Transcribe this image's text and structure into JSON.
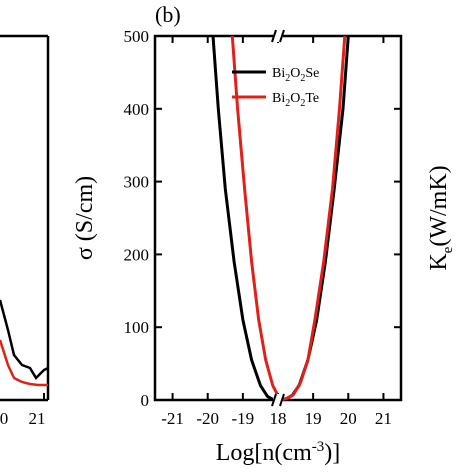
{
  "colors": {
    "se": "#000000",
    "te": "#e0201b",
    "axis": "#000000"
  },
  "left_panel_ticks": [
    "0",
    "21"
  ],
  "chart_data": {
    "type": "line",
    "panel_label": "(b)",
    "xlabel": "Log[n(cm⁻³)]",
    "ylabel": "σ (S/cm)",
    "y2label": "Ke(W/mK)",
    "xlim": [
      -21.5,
      21.5
    ],
    "ylim": [
      0,
      500
    ],
    "x_axis_break": true,
    "x_ticks": [
      {
        "v": -21,
        "label": "-21"
      },
      {
        "v": -20,
        "label": "-20"
      },
      {
        "v": -19,
        "label": "-19"
      },
      {
        "v": 18,
        "label": "18"
      },
      {
        "v": 19,
        "label": "19"
      },
      {
        "v": 20,
        "label": "20"
      },
      {
        "v": 21,
        "label": "21"
      }
    ],
    "y_ticks": [
      0,
      100,
      200,
      300,
      400,
      500
    ],
    "legend": {
      "position": "top-right"
    },
    "series": [
      {
        "name": "Bi2O2Se",
        "color": "#000000",
        "points": [
          [
            -19.85,
            500
          ],
          [
            -19.7,
            400
          ],
          [
            -19.5,
            290
          ],
          [
            -19.25,
            190
          ],
          [
            -19.0,
            110
          ],
          [
            -18.75,
            55
          ],
          [
            -18.5,
            20
          ],
          [
            -18.3,
            5
          ],
          [
            -18.15,
            1
          ],
          [
            18.05,
            0.2
          ],
          [
            18.2,
            1
          ],
          [
            18.4,
            6
          ],
          [
            18.6,
            20
          ],
          [
            18.85,
            55
          ],
          [
            19.1,
            110
          ],
          [
            19.35,
            190
          ],
          [
            19.6,
            290
          ],
          [
            19.85,
            400
          ],
          [
            20.0,
            500
          ]
        ]
      },
      {
        "name": "Bi2O2Te",
        "color": "#e0201b",
        "points": [
          [
            -19.3,
            500
          ],
          [
            -19.15,
            400
          ],
          [
            -18.95,
            290
          ],
          [
            -18.75,
            190
          ],
          [
            -18.55,
            110
          ],
          [
            -18.35,
            55
          ],
          [
            -18.15,
            20
          ],
          [
            -18.0,
            6
          ],
          [
            -17.95,
            2
          ],
          [
            18.1,
            0.5
          ],
          [
            18.25,
            2
          ],
          [
            18.45,
            8
          ],
          [
            18.65,
            25
          ],
          [
            18.85,
            55
          ],
          [
            19.05,
            110
          ],
          [
            19.3,
            190
          ],
          [
            19.55,
            290
          ],
          [
            19.75,
            400
          ],
          [
            19.9,
            500
          ]
        ]
      }
    ]
  }
}
